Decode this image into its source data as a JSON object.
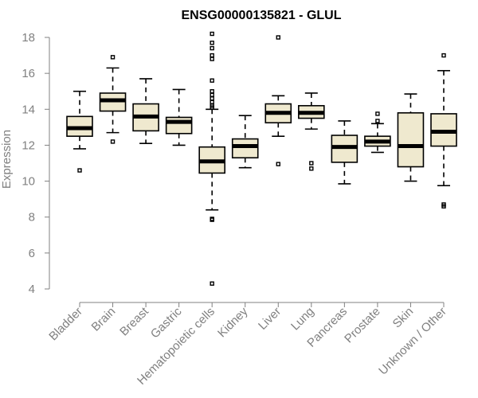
{
  "chart_data": {
    "type": "boxplot",
    "title": "ENSG00000135821 - GLUL",
    "ylabel": "Expression",
    "xlabel": "",
    "ylim": [
      4,
      18
    ],
    "yticks": [
      4,
      6,
      8,
      10,
      12,
      14,
      16,
      18
    ],
    "grid": false,
    "box_color": "#efe9cf",
    "categories": [
      "Bladder",
      "Brain",
      "Breast",
      "Gastric",
      "Hematopoietic cells",
      "Kidney",
      "Liver",
      "Lung",
      "Pancreas",
      "Prostate",
      "Skin",
      "Unknown / Other"
    ],
    "boxes": [
      {
        "low": 11.8,
        "q1": 12.5,
        "median": 12.95,
        "q3": 13.6,
        "high": 15.0,
        "outliers": [
          10.6
        ]
      },
      {
        "low": 12.7,
        "q1": 13.9,
        "median": 14.5,
        "q3": 14.9,
        "high": 16.3,
        "outliers": [
          16.9,
          12.2
        ]
      },
      {
        "low": 12.1,
        "q1": 12.8,
        "median": 13.6,
        "q3": 14.3,
        "high": 15.7,
        "outliers": []
      },
      {
        "low": 12.0,
        "q1": 12.65,
        "median": 13.3,
        "q3": 13.55,
        "high": 15.1,
        "outliers": []
      },
      {
        "low": 8.4,
        "q1": 10.45,
        "median": 11.1,
        "q3": 11.9,
        "high": 14.0,
        "outliers": [
          18.2,
          17.7,
          17.4,
          17.0,
          16.8,
          15.6,
          15.0,
          14.8,
          14.6,
          14.4,
          14.2,
          14.1,
          7.9,
          7.85,
          4.3
        ]
      },
      {
        "low": 10.75,
        "q1": 11.3,
        "median": 11.95,
        "q3": 12.35,
        "high": 13.65,
        "outliers": []
      },
      {
        "low": 12.5,
        "q1": 13.25,
        "median": 13.8,
        "q3": 14.3,
        "high": 14.75,
        "outliers": [
          18.0,
          10.95
        ]
      },
      {
        "low": 12.9,
        "q1": 13.5,
        "median": 13.8,
        "q3": 14.2,
        "high": 14.9,
        "outliers": [
          11.0,
          10.7
        ]
      },
      {
        "low": 9.85,
        "q1": 11.05,
        "median": 11.9,
        "q3": 12.55,
        "high": 13.35,
        "outliers": []
      },
      {
        "low": 11.6,
        "q1": 11.95,
        "median": 12.2,
        "q3": 12.5,
        "high": 13.2,
        "outliers": [
          13.75,
          13.35
        ]
      },
      {
        "low": 10.0,
        "q1": 10.8,
        "median": 11.95,
        "q3": 13.8,
        "high": 14.85,
        "outliers": []
      },
      {
        "low": 9.75,
        "q1": 11.95,
        "median": 12.75,
        "q3": 13.75,
        "high": 16.15,
        "outliers": [
          17.0,
          8.7,
          8.6
        ]
      }
    ]
  }
}
